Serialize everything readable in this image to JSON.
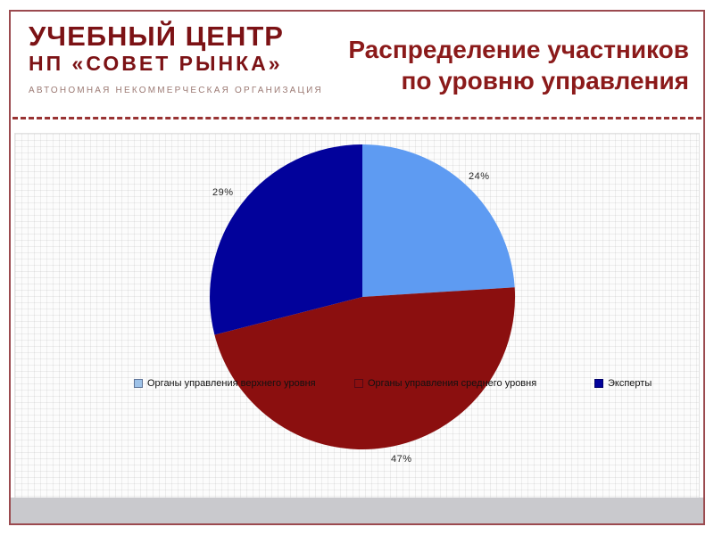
{
  "header": {
    "logo_line1": "УЧЕБНЫЙ ЦЕНТР",
    "logo_line2": "НП «СОВЕТ РЫНКА»",
    "logo_subtitle": "АВТОНОМНАЯ НЕКОММЕРЧЕСКАЯ ОРГАНИЗАЦИЯ",
    "title_line1": "Распределение участников",
    "title_line2": "по уровню управления"
  },
  "chart_data": {
    "type": "pie",
    "title": "Распределение участников по уровню управления",
    "direction": "clockwise",
    "start_angle_deg": 0,
    "legend_position": "center-row-over-chart",
    "slices": [
      {
        "label": "Органы управления верхнего уровня",
        "value": 24,
        "display": "24%",
        "color": "#5E9BF2",
        "legend_swatch_color": "#9EC2E8"
      },
      {
        "label": "Органы управления среднего уровня",
        "value": 47,
        "display": "47%",
        "color": "#8B0F0F",
        "legend_swatch_color": "#8B0F0F"
      },
      {
        "label": "Эксперты",
        "value": 29,
        "display": "29%",
        "color": "#02029B",
        "legend_swatch_color": "#02029B"
      }
    ]
  },
  "colors": {
    "logo_maroon": "#7C1215",
    "title_red": "#8B1A1A",
    "frame_border": "#9B4A4F",
    "separator_red": "#993333",
    "footer_bar_gray": "#C9C9CD",
    "chart_bg": "#FCFCFC"
  }
}
